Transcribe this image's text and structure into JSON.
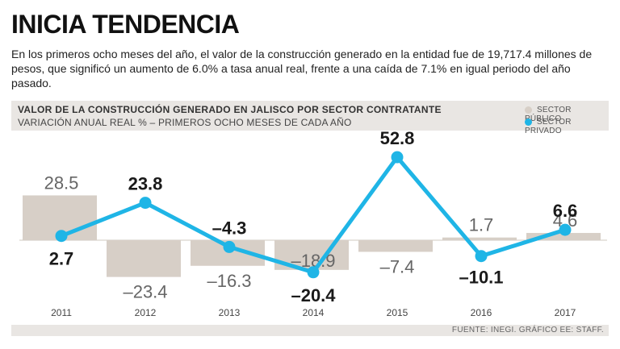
{
  "headline": "INICIA TENDENCIA",
  "intro": "En los primeros ocho meses del año, el valor de la construcción generado en la entidad fue de 19,717.4 millones de pesos, que significó un aumento de 6.0% a tasa anual real, frente a una caída de 7.1% en igual periodo del año pasado.",
  "colors": {
    "publico": "#d7cfc7",
    "privado": "#1fb5e6",
    "header_bg": "#e9e6e3"
  },
  "source": "FUENTE: INEGI. GRÁFICO EE: STAFF.",
  "chart_data": {
    "type": "bar",
    "title": "VALOR DE LA CONSTRUCCIÓN GENERADO EN JALISCO POR SECTOR CONTRATANTE",
    "subtitle": "VARIACIÓN ANUAL REAL % – PRIMEROS OCHO MESES DE CADA AÑO",
    "categories": [
      "2011",
      "2012",
      "2013",
      "2014",
      "2015",
      "2016",
      "2017"
    ],
    "series": [
      {
        "name": "SECTOR PÚBLICO",
        "type": "bar",
        "values": [
          28.5,
          -23.4,
          -16.3,
          -18.9,
          -7.4,
          1.7,
          4.6
        ],
        "labels": [
          "28.5",
          "–23.4",
          "–16.3",
          "–18.9",
          "–7.4",
          "1.7",
          "4.6"
        ]
      },
      {
        "name": "SECTOR PRIVADO",
        "type": "line",
        "values": [
          2.7,
          23.8,
          -4.3,
          -20.4,
          52.8,
          -10.1,
          6.6
        ],
        "labels": [
          "2.7",
          "23.8",
          "–4.3",
          "–20.4",
          "52.8",
          "–10.1",
          "6.6"
        ]
      }
    ],
    "xlabel": "",
    "ylabel": "",
    "ylim": [
      -30,
      60
    ],
    "grid": false,
    "legend": "top-right"
  }
}
